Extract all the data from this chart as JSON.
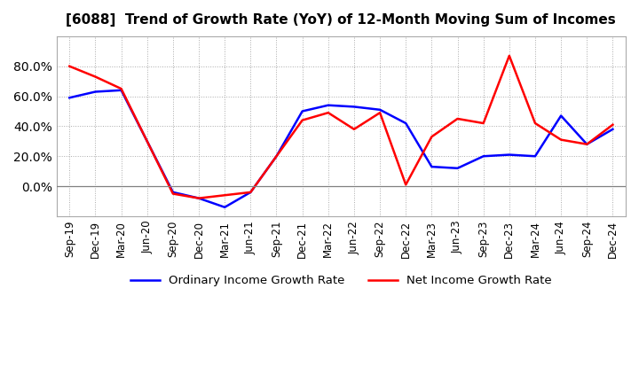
{
  "title": "[6088]  Trend of Growth Rate (YoY) of 12-Month Moving Sum of Incomes",
  "x_labels": [
    "Sep-19",
    "Dec-19",
    "Mar-20",
    "Jun-20",
    "Sep-20",
    "Dec-20",
    "Mar-21",
    "Jun-21",
    "Sep-21",
    "Dec-21",
    "Mar-22",
    "Jun-22",
    "Sep-22",
    "Dec-22",
    "Mar-23",
    "Jun-23",
    "Sep-23",
    "Dec-23",
    "Mar-24",
    "Jun-24",
    "Sep-24",
    "Dec-24"
  ],
  "ordinary_income": [
    0.59,
    0.63,
    0.64,
    0.3,
    -0.04,
    -0.08,
    -0.14,
    -0.04,
    0.2,
    0.5,
    0.54,
    0.53,
    0.51,
    0.42,
    0.13,
    0.12,
    0.2,
    0.21,
    0.2,
    0.47,
    0.28,
    0.38
  ],
  "net_income": [
    0.8,
    0.73,
    0.65,
    0.3,
    -0.05,
    -0.08,
    -0.06,
    -0.04,
    0.2,
    0.44,
    0.49,
    0.38,
    0.49,
    0.01,
    0.33,
    0.45,
    0.42,
    0.87,
    0.42,
    0.31,
    0.28,
    0.41
  ],
  "ylim": [
    -0.2,
    1.0
  ],
  "yticks": [
    0.0,
    0.2,
    0.4,
    0.6,
    0.8
  ],
  "ordinary_color": "#0000FF",
  "net_color": "#FF0000",
  "line_width": 1.8,
  "background_color": "#FFFFFF",
  "grid_color": "#AAAAAA",
  "legend_ordinary": "Ordinary Income Growth Rate",
  "legend_net": "Net Income Growth Rate"
}
